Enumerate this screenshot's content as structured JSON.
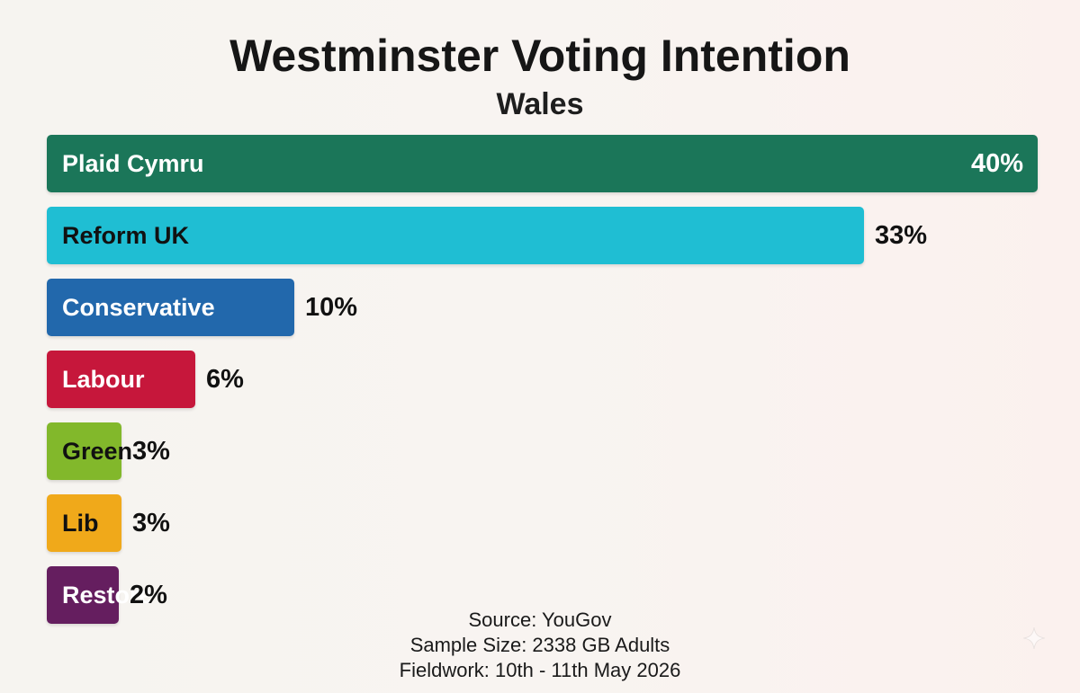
{
  "chart_data": {
    "type": "bar",
    "orientation": "horizontal",
    "title": "Westminster Voting Intention",
    "subtitle": "Wales",
    "categories": [
      "Plaid Cymru",
      "Reform UK",
      "Conservative",
      "Labour",
      "Green",
      "Lib",
      "Restore"
    ],
    "values": [
      40,
      33,
      10,
      6,
      3,
      3,
      2
    ],
    "value_labels": [
      "40%",
      "33%",
      "10%",
      "6%",
      "3%",
      "3%",
      "2%"
    ],
    "unit": "%",
    "xlim": [
      0,
      40
    ],
    "grid": false,
    "legend": "none",
    "colors": [
      "#1b7659",
      "#1fbed3",
      "#2268ac",
      "#c6173b",
      "#82b82b",
      "#f0a91a",
      "#651e5f"
    ],
    "label_colors": [
      "#ffffff",
      "#111111",
      "#ffffff",
      "#ffffff",
      "#111111",
      "#111111",
      "#ffffff"
    ]
  },
  "footer": {
    "source": "Source: YouGov",
    "sample": "Sample Size: 2338 GB Adults",
    "fieldwork": "Fieldwork: 10th - 11th May 2026"
  },
  "icons": {
    "sparkle": "sparkle-icon"
  }
}
